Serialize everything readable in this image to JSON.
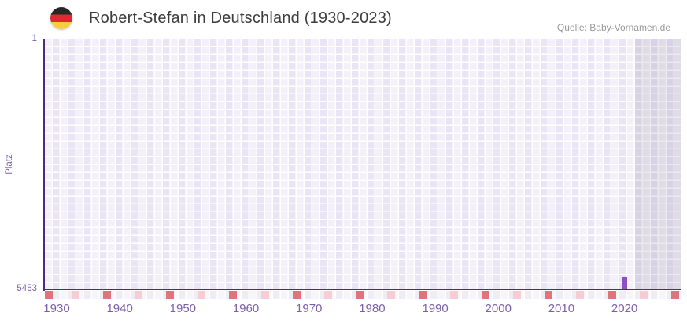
{
  "header": {
    "title": "Robert-Stefan in Deutschland (1930-2023)",
    "flag_icon": "german-flag-circle",
    "source": "Quelle: Baby-Vornamen.de"
  },
  "chart_data": {
    "type": "scatter",
    "title": "Robert-Stefan in Deutschland (1930-2023)",
    "source": "Quelle: Baby-Vornamen.de",
    "xlabel": "",
    "ylabel": "Platz",
    "x_ticks": [
      1930,
      1940,
      1950,
      1960,
      1970,
      1980,
      1990,
      2000,
      2010,
      2020
    ],
    "x_range": [
      1928.13,
      2029.03
    ],
    "y_axis": {
      "top_label": "1",
      "bottom_label": "5453",
      "range": [
        1,
        5453
      ],
      "inverted": true
    },
    "points": [
      {
        "year": 2020,
        "rank": 5453
      }
    ],
    "shaded_region": {
      "from_year": 2021.7,
      "to_year": 2029.03
    },
    "axis_strip_markers": {
      "red_years": [
        1928,
        1938,
        1948,
        1958,
        1968,
        1978,
        1988,
        1998,
        2008,
        2018,
        2028
      ],
      "pink_years": [
        1933,
        1943,
        1953,
        1963,
        1973,
        1983,
        1993,
        2003,
        2013,
        2023
      ]
    },
    "grid": true,
    "legend": false,
    "colors": {
      "axis": "#4c2b82",
      "labels": "#7d5fa8",
      "grid_light": "#f3f0fa",
      "grid_dark": "#eae5f5",
      "strip_light": "#f7f5fc",
      "strip_dark": "#efecf8",
      "marker": "#8a50c4",
      "strip_red": "#e4717e",
      "strip_pink": "#f4cdd7",
      "shade": "rgba(92,85,118,0.13)",
      "title": "#3d3d3d",
      "source": "#9a9a9a",
      "flag_black": "#262626",
      "flag_red": "#dd2b2c",
      "flag_gold": "#f8ce3d"
    }
  }
}
